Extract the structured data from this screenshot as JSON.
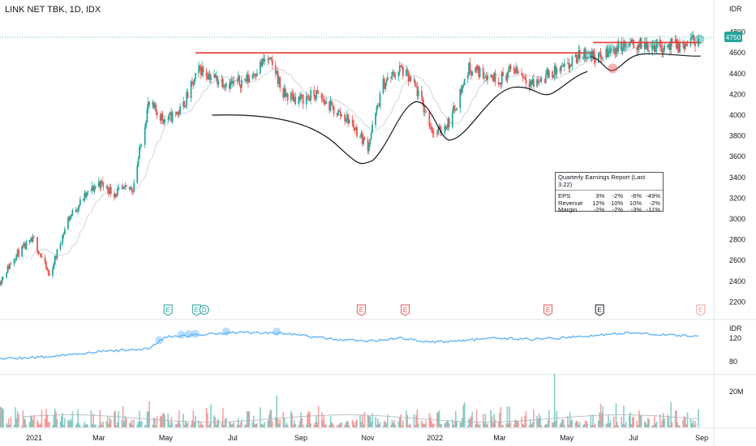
{
  "header": {
    "title": "LINK NET TBK, 1D, IDX"
  },
  "price_axis": {
    "unit": "IDR",
    "ticks": [
      "4800",
      "4600",
      "4400",
      "4200",
      "4000",
      "3800",
      "3600",
      "3400",
      "3200",
      "3000",
      "2800",
      "2600",
      "2400",
      "2200"
    ]
  },
  "last_price": {
    "label": "4750",
    "color": "#26a69a"
  },
  "ind_axis": {
    "unit": "IDR",
    "ticks": [
      "120",
      "80"
    ]
  },
  "vol_axis": {
    "ticks": [
      "20M"
    ]
  },
  "time_axis": {
    "ticks": [
      "2021",
      "Mar",
      "May",
      "Jul",
      "Sep",
      "Nov",
      "2022",
      "Mar",
      "May",
      "Jul",
      "Sep"
    ]
  },
  "earnings_markers": [
    {
      "label": "E",
      "color": "#26a69a"
    },
    {
      "label": "E",
      "color": "#26a69a"
    },
    {
      "label": "D",
      "color": "#26a69a"
    },
    {
      "label": "E",
      "color": "#ef5350"
    },
    {
      "label": "E",
      "color": "#ef5350"
    },
    {
      "label": "E",
      "color": "#ef5350"
    },
    {
      "label": "E",
      "color": "#131722"
    },
    {
      "label": "E",
      "color": "#f4a09c"
    }
  ],
  "earnings_table": {
    "title": "Quarterly Earnings Report (Last 3.22)",
    "rows": [
      {
        "label": "EPS",
        "values": [
          "3%",
          "-2%",
          "-6%",
          "-49%"
        ]
      },
      {
        "label": "Revenue",
        "values": [
          "12%",
          "10%",
          "10%",
          "-2%"
        ]
      },
      {
        "label": "Margin",
        "values": [
          "-2%",
          "-2%",
          "-3%",
          "-11%"
        ]
      }
    ]
  },
  "colors": {
    "up": "#26a69a",
    "down": "#ef5350",
    "resistance": "#e53935",
    "ma": "#d1d4dc",
    "indicator": "#64b5f6",
    "pattern": "#131722"
  },
  "chart_data": {
    "type": "line",
    "title": "LINK NET TBK, 1D, IDX",
    "xlabel": "",
    "ylabel": "IDR",
    "ylim": [
      2100,
      4900
    ],
    "grid": false,
    "price_series": {
      "name": "LINK NET TBK",
      "x": [
        "2020-12-01",
        "2020-12-15",
        "2021-01-01",
        "2021-01-15",
        "2021-02-01",
        "2021-02-15",
        "2021-03-01",
        "2021-03-15",
        "2021-04-01",
        "2021-04-15",
        "2021-05-01",
        "2021-05-15",
        "2021-06-01",
        "2021-06-15",
        "2021-07-01",
        "2021-07-15",
        "2021-08-01",
        "2021-08-10",
        "2021-08-15",
        "2021-09-01",
        "2021-09-15",
        "2021-10-01",
        "2021-10-15",
        "2021-11-01",
        "2021-11-15",
        "2021-12-01",
        "2021-12-15",
        "2022-01-01",
        "2022-01-15",
        "2022-02-01",
        "2022-02-15",
        "2022-03-01",
        "2022-03-15",
        "2022-04-01",
        "2022-04-15",
        "2022-05-01",
        "2022-05-15",
        "2022-06-01",
        "2022-06-15",
        "2022-07-01",
        "2022-07-15",
        "2022-08-01",
        "2022-08-15",
        "2022-08-29"
      ],
      "close": [
        2400,
        2650,
        2800,
        2450,
        3000,
        3200,
        3350,
        3250,
        3300,
        4100,
        3950,
        4050,
        4450,
        4350,
        4300,
        4350,
        4550,
        4400,
        4200,
        4150,
        4200,
        4050,
        3950,
        3700,
        4300,
        4450,
        4250,
        3800,
        3950,
        4450,
        4400,
        4350,
        4450,
        4300,
        4400,
        4450,
        4600,
        4550,
        4650,
        4680,
        4670,
        4670,
        4660,
        4750
      ]
    },
    "resistance_level": 4600,
    "resistance_level_2": 4700,
    "indicator_series": {
      "ticks": [
        120,
        80
      ],
      "x": [
        "2020-12-01",
        "2021-01-01",
        "2021-02-01",
        "2021-03-01",
        "2021-04-15",
        "2021-05-01",
        "2021-06-01",
        "2021-07-01",
        "2021-08-10",
        "2021-09-01",
        "2021-10-01",
        "2021-11-01",
        "2021-12-01",
        "2022-01-01",
        "2022-02-01",
        "2022-03-01",
        "2022-04-01",
        "2022-05-01",
        "2022-06-01",
        "2022-07-01",
        "2022-08-01",
        "2022-08-29"
      ],
      "values": [
        85,
        87,
        92,
        97,
        102,
        122,
        126,
        130,
        129,
        125,
        118,
        115,
        120,
        113,
        117,
        120,
        118,
        121,
        125,
        130,
        125,
        124
      ]
    },
    "volume": {
      "unit_tick": "20M",
      "spikes": [
        {
          "x": "2021-08-10",
          "value": 18
        },
        {
          "x": "2022-04-20",
          "value": 30
        }
      ]
    }
  }
}
